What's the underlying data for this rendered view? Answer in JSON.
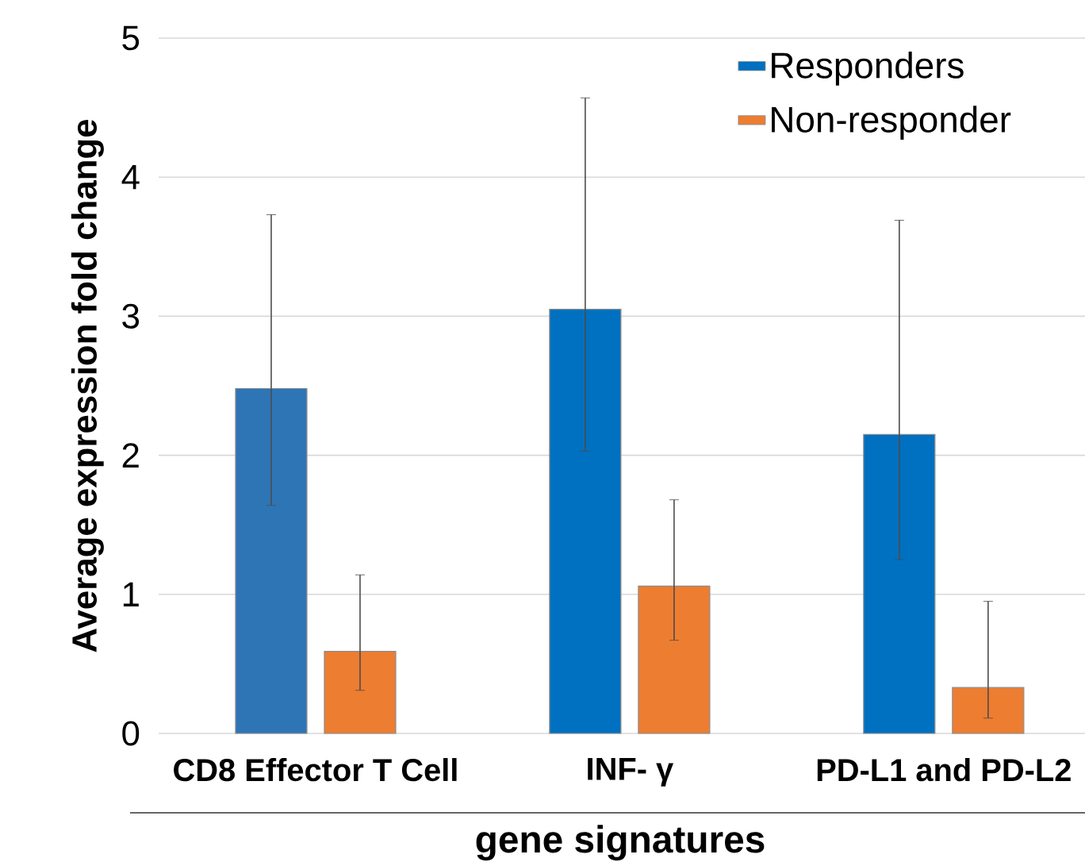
{
  "chart_data": {
    "type": "bar",
    "xlabel": "gene signatures",
    "ylabel": "Average expression fold change",
    "categories": [
      "CD8 Effector T Cell",
      "INF- γ",
      "PD-L1 and PD-L2"
    ],
    "series": [
      {
        "name": "Responders",
        "color": "#0070c0",
        "colors": [
          "#2e75b6",
          "#0070c0",
          "#0070c0"
        ],
        "values": [
          2.48,
          3.05,
          2.15
        ],
        "errors": [
          [
            1.64,
            3.73
          ],
          [
            2.03,
            4.57
          ],
          [
            1.25,
            3.69
          ]
        ]
      },
      {
        "name": "Non-responder",
        "color": "#ed7d31",
        "values": [
          0.59,
          1.06,
          0.33
        ],
        "errors": [
          [
            0.31,
            1.14
          ],
          [
            0.67,
            1.68
          ],
          [
            0.11,
            0.95
          ]
        ]
      }
    ],
    "ylim": [
      0,
      5
    ],
    "yticks": [
      0,
      1,
      2,
      3,
      4,
      5
    ],
    "grid": "y",
    "legend": "top right"
  }
}
